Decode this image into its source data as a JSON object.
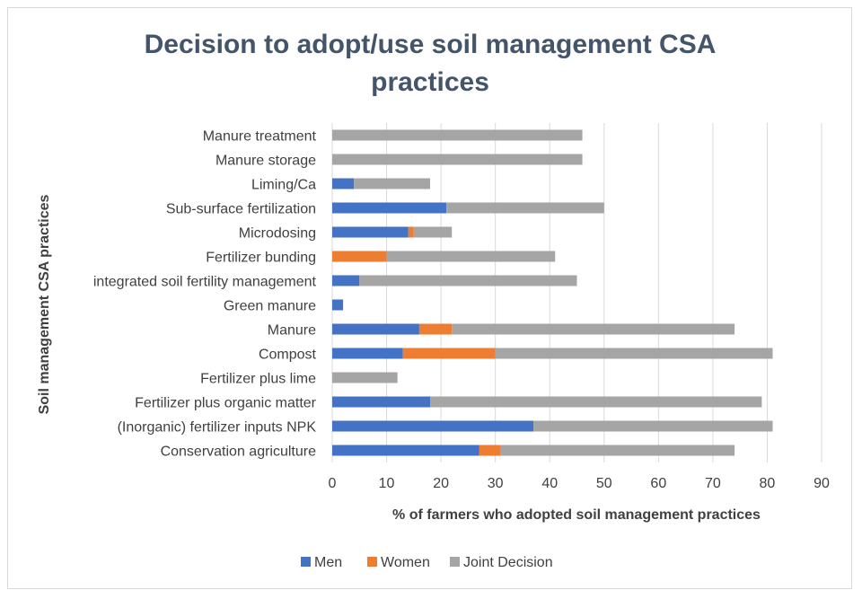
{
  "chart_data": {
    "type": "bar",
    "orientation": "horizontal",
    "stacked": true,
    "title_line1": "Decision to adopt/use soil management CSA",
    "title_line2": "practices",
    "xlabel": "% of farmers who adopted soil management practices",
    "ylabel": "Soil management CSA practices",
    "xlim": [
      0,
      90
    ],
    "xticks": [
      0,
      10,
      20,
      30,
      40,
      50,
      60,
      70,
      80,
      90
    ],
    "grid": "vertical",
    "legend_position": "bottom",
    "categories": [
      "Manure treatment",
      "Manure storage",
      "Liming/Ca",
      "Sub-surface fertilization",
      "Microdosing",
      "Fertilizer bunding",
      "integrated soil fertility management",
      "Green manure",
      "Manure",
      "Compost",
      "Fertilizer plus lime",
      "Fertilizer plus organic matter",
      "(Inorganic) fertilizer inputs NPK",
      "Conservation agriculture"
    ],
    "series": [
      {
        "name": "Men",
        "color": "#4472c4",
        "values": [
          0,
          0,
          4,
          21,
          14,
          0,
          5,
          2,
          16,
          13,
          0,
          18,
          37,
          27
        ]
      },
      {
        "name": "Women",
        "color": "#ed7d31",
        "values": [
          0,
          0,
          0,
          0,
          1,
          10,
          0,
          0,
          6,
          17,
          0,
          0,
          0,
          4
        ]
      },
      {
        "name": "Joint Decision",
        "color": "#a5a5a5",
        "values": [
          46,
          46,
          14,
          29,
          7,
          31,
          40,
          0,
          52,
          51,
          12,
          61,
          44,
          43
        ]
      }
    ]
  }
}
